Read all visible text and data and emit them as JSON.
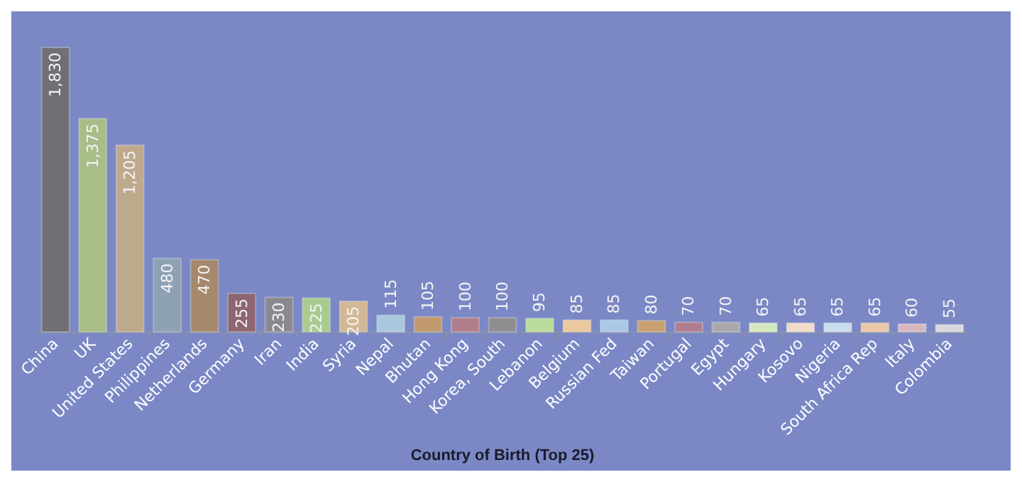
{
  "chart_data": {
    "type": "bar",
    "xlabel": "Country of Birth (Top 25)",
    "categories": [
      "China",
      "UK",
      "United States",
      "Philippines",
      "Netherlands",
      "Germany",
      "Iran",
      "India",
      "Syria",
      "Nepal",
      "Bhutan",
      "Hong Kong",
      "Korea, South",
      "Lebanon",
      "Belgium",
      "Russian Fed",
      "Taiwan",
      "Portugal",
      "Egypt",
      "Hungary",
      "Kosovo",
      "Nigeria",
      "South Africa Rep",
      "Italy",
      "Colombia"
    ],
    "values": [
      1830,
      1375,
      1205,
      480,
      470,
      255,
      230,
      225,
      205,
      115,
      105,
      100,
      100,
      95,
      85,
      85,
      80,
      70,
      70,
      65,
      65,
      65,
      65,
      60,
      55
    ],
    "value_labels": [
      "1,830",
      "1,375",
      "1,205",
      "480",
      "470",
      "255",
      "230",
      "225",
      "205",
      "115",
      "105",
      "100",
      "100",
      "95",
      "85",
      "85",
      "80",
      "70",
      "70",
      "65",
      "65",
      "65",
      "65",
      "60",
      "55"
    ],
    "colors": [
      "#6f6f74",
      "#a8bd88",
      "#bfa98d",
      "#8ea2b3",
      "#a6886c",
      "#8e6672",
      "#8a8a8e",
      "#a9cc8e",
      "#d2b896",
      "#a9c8df",
      "#c09a6e",
      "#b07e8a",
      "#8e8e90",
      "#b8dc9a",
      "#ecc8a0",
      "#a9c8e6",
      "#c9a070",
      "#b07e8e",
      "#a8a8ac",
      "#d4e8c0",
      "#f0dcc8",
      "#c8dcee",
      "#ecc8a8",
      "#d8b8c0",
      "#d8d8dc"
    ],
    "tick_labels": "x"
  }
}
